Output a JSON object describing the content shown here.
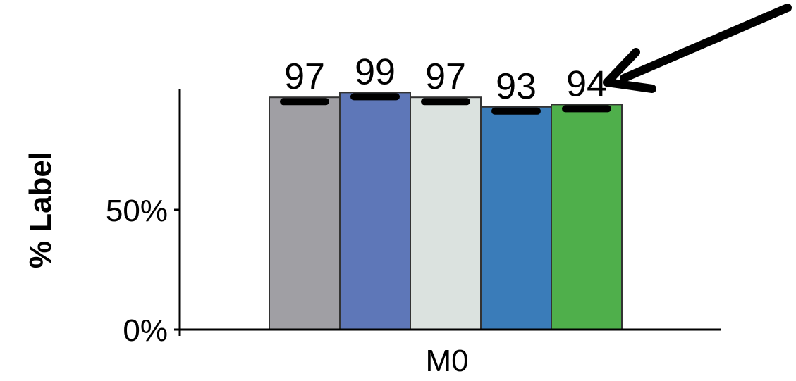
{
  "chart_data": {
    "type": "bar",
    "categories": [
      "M0"
    ],
    "series": [
      {
        "values": [
          97
        ],
        "color": "#a09fa4"
      },
      {
        "values": [
          99
        ],
        "color": "#5e77b8"
      },
      {
        "values": [
          97
        ],
        "color": "#dbe2df"
      },
      {
        "values": [
          93
        ],
        "color": "#3a7cb9"
      },
      {
        "values": [
          94
        ],
        "color": "#4faf4b"
      }
    ],
    "data_labels": [
      "97",
      "99",
      "97",
      "93",
      "94"
    ],
    "title": "",
    "xlabel": "",
    "ylabel": "% Label",
    "ylim": [
      0,
      100
    ],
    "yticks": [
      {
        "value": 0,
        "label": "0%"
      },
      {
        "value": 50,
        "label": "50%"
      }
    ],
    "error_bars": true,
    "annotations": [
      {
        "type": "arrow",
        "points_to": "94"
      }
    ],
    "grid": false,
    "legend": "none"
  }
}
